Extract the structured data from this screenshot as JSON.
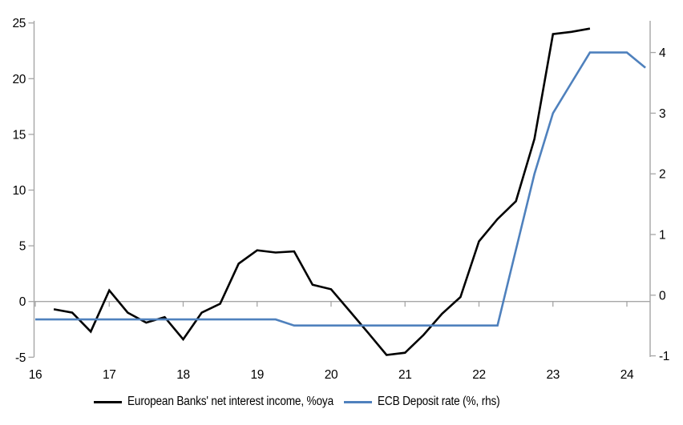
{
  "chart": {
    "background": "#ffffff",
    "axis_color": "#a6a6a6",
    "zero_line_color": "#a6a6a6",
    "text_color": "#000000"
  },
  "chart_data": {
    "type": "line",
    "title": "",
    "xlabel": "",
    "ylabel_left": "",
    "ylabel_right": "",
    "grid": "zero-line-only",
    "legend_position": "bottom",
    "x_axis": {
      "ticks": [
        16,
        17,
        18,
        19,
        20,
        21,
        22,
        23,
        24
      ],
      "range": [
        16,
        24.3
      ]
    },
    "left_axis": {
      "ticks": [
        25,
        20,
        15,
        10,
        5,
        0,
        -5
      ],
      "range": [
        -5,
        25
      ]
    },
    "right_axis": {
      "ticks": [
        4,
        3,
        2,
        1,
        0,
        -1
      ],
      "range": [
        -1,
        4.5
      ]
    },
    "series": [
      {
        "name": "European Banks' net interest income, %oya",
        "color": "#000000",
        "axis": "left",
        "x": [
          16.25,
          16.5,
          16.75,
          17.0,
          17.25,
          17.5,
          17.75,
          18.0,
          18.25,
          18.5,
          18.75,
          19.0,
          19.25,
          19.5,
          19.75,
          20.0,
          20.25,
          20.5,
          20.75,
          21.0,
          21.25,
          21.5,
          21.75,
          22.0,
          22.25,
          22.5,
          22.75,
          23.0,
          23.25,
          23.5
        ],
        "values": [
          -0.7,
          -1.0,
          -2.7,
          1.0,
          -1.0,
          -1.9,
          -1.4,
          -3.4,
          -1.0,
          -0.2,
          3.4,
          4.6,
          4.4,
          4.5,
          1.5,
          1.1,
          -0.85,
          -2.8,
          -4.8,
          -4.6,
          -3.0,
          -1.1,
          0.4,
          5.4,
          7.4,
          9.0,
          14.6,
          24.0,
          24.2,
          24.5
        ]
      },
      {
        "name": "ECB Deposit rate (%, rhs)",
        "color": "#4f81bd",
        "axis": "right",
        "x": [
          16.0,
          16.25,
          16.5,
          16.75,
          17.0,
          17.25,
          17.5,
          17.75,
          18.0,
          18.25,
          18.5,
          18.75,
          19.0,
          19.25,
          19.5,
          19.75,
          20.0,
          20.25,
          20.5,
          20.75,
          21.0,
          21.25,
          21.5,
          21.75,
          22.0,
          22.25,
          22.5,
          22.75,
          23.0,
          23.25,
          23.5,
          23.75,
          24.0,
          24.25
        ],
        "values": [
          -0.4,
          -0.4,
          -0.4,
          -0.4,
          -0.4,
          -0.4,
          -0.4,
          -0.4,
          -0.4,
          -0.4,
          -0.4,
          -0.4,
          -0.4,
          -0.4,
          -0.5,
          -0.5,
          -0.5,
          -0.5,
          -0.5,
          -0.5,
          -0.5,
          -0.5,
          -0.5,
          -0.5,
          -0.5,
          -0.5,
          0.75,
          2.0,
          3.0,
          3.5,
          4.0,
          4.0,
          4.0,
          3.75
        ]
      }
    ]
  },
  "legend": {
    "items": [
      {
        "label": "European Banks' net interest income, %oya",
        "color": "#000000"
      },
      {
        "label": "ECB Deposit rate (%, rhs)",
        "color": "#4f81bd"
      }
    ]
  }
}
